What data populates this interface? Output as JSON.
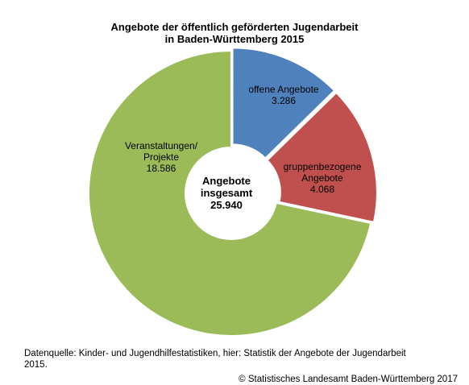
{
  "chart_data": {
    "type": "pie",
    "title_lines": [
      "Angebote der öffentlich geförderten Jugendarbeit",
      "in Baden-Württemberg 2015"
    ],
    "center_label_lines": [
      "Angebote",
      "insgesamt",
      "25.940"
    ],
    "total": 25940,
    "slices": [
      {
        "label_lines": [
          "offene Angebote",
          "3.286"
        ],
        "value": 3286,
        "color": "#4f81bd"
      },
      {
        "label_lines": [
          "gruppenbezogene",
          "Angebote",
          "4.068"
        ],
        "value": 4068,
        "color": "#c0504d"
      },
      {
        "label_lines": [
          "Veranstaltungen/",
          "Projekte",
          "18.586"
        ],
        "value": 18586,
        "color": "#9bbb59"
      }
    ]
  },
  "footer": {
    "source_lines": [
      "Datenquelle: Kinder- und Jugendhilfestatistiken, hier: Statistik der Angebote der Jugendarbeit",
      "2015."
    ],
    "copyright": "© Statistisches Landesamt Baden-Württemberg 2017"
  }
}
